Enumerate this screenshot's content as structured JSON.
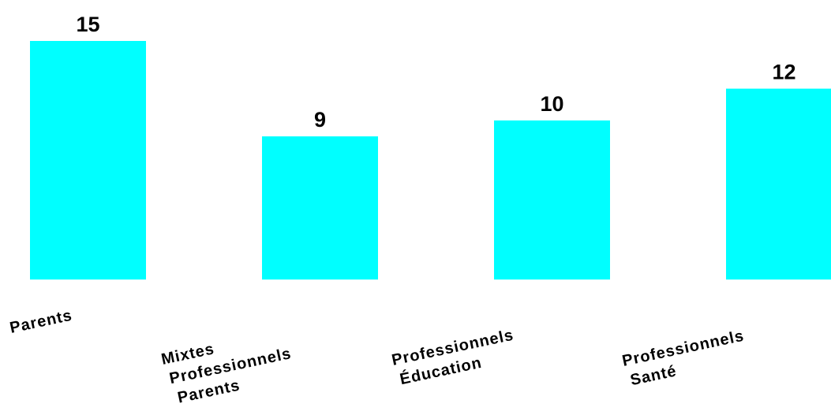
{
  "chart_data": {
    "type": "bar",
    "categories": [
      [
        "Parents"
      ],
      [
        "Mixtes",
        "Professionnels",
        "Parents"
      ],
      [
        "Professionnels",
        "Éducation"
      ],
      [
        "Professionnels",
        "Santé"
      ]
    ],
    "values": [
      15,
      9,
      10,
      12
    ],
    "data_labels": [
      "15",
      "9",
      "10",
      "12"
    ],
    "ylim": [
      0,
      15
    ],
    "grid": false,
    "legend": "none",
    "bar_color": "#00FFFF",
    "label_color": "#000000"
  }
}
